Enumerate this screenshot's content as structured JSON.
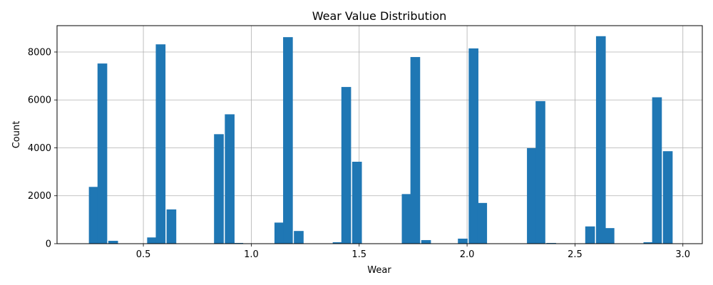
{
  "chart_data": {
    "type": "bar",
    "title": "Wear Value Distribution",
    "xlabel": "Wear",
    "ylabel": "Count",
    "xlim": [
      0.1,
      3.09
    ],
    "ylim": [
      0,
      9100
    ],
    "grid": true,
    "bar_color": "#1f77b4",
    "bin_width": 0.045,
    "x_ticks": [
      "0.5",
      "1.0",
      "1.5",
      "2.0",
      "2.5",
      "3.0"
    ],
    "x_tick_values": [
      0.5,
      1.0,
      1.5,
      2.0,
      2.5,
      3.0
    ],
    "y_ticks": [
      "0",
      "2000",
      "4000",
      "6000",
      "8000"
    ],
    "y_tick_values": [
      0,
      2000,
      4000,
      6000,
      8000
    ],
    "bins": [
      {
        "x": 0.27,
        "count": 2370
      },
      {
        "x": 0.31,
        "count": 7520
      },
      {
        "x": 0.36,
        "count": 120
      },
      {
        "x": 0.54,
        "count": 260
      },
      {
        "x": 0.58,
        "count": 8320
      },
      {
        "x": 0.63,
        "count": 1430
      },
      {
        "x": 0.85,
        "count": 4570
      },
      {
        "x": 0.9,
        "count": 5400
      },
      {
        "x": 0.94,
        "count": 30
      },
      {
        "x": 1.13,
        "count": 880
      },
      {
        "x": 1.17,
        "count": 8620
      },
      {
        "x": 1.22,
        "count": 530
      },
      {
        "x": 1.4,
        "count": 60
      },
      {
        "x": 1.44,
        "count": 6540
      },
      {
        "x": 1.49,
        "count": 3420
      },
      {
        "x": 1.72,
        "count": 2070
      },
      {
        "x": 1.76,
        "count": 7790
      },
      {
        "x": 1.81,
        "count": 150
      },
      {
        "x": 1.98,
        "count": 210
      },
      {
        "x": 2.03,
        "count": 8150
      },
      {
        "x": 2.07,
        "count": 1700
      },
      {
        "x": 2.3,
        "count": 3990
      },
      {
        "x": 2.34,
        "count": 5950
      },
      {
        "x": 2.39,
        "count": 30
      },
      {
        "x": 2.57,
        "count": 720
      },
      {
        "x": 2.62,
        "count": 8660
      },
      {
        "x": 2.66,
        "count": 650
      },
      {
        "x": 2.84,
        "count": 60
      },
      {
        "x": 2.88,
        "count": 6110
      },
      {
        "x": 2.93,
        "count": 3860
      }
    ]
  }
}
